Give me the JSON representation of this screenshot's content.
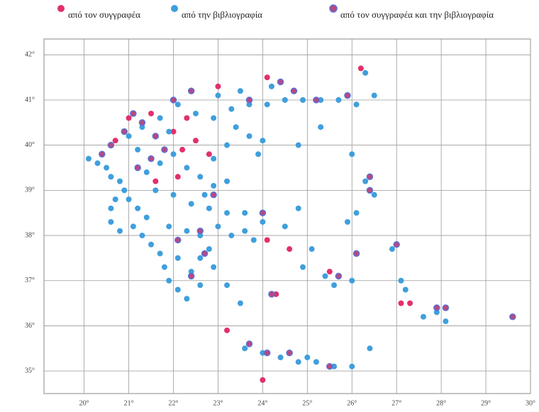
{
  "map": {
    "xlim": [
      19.1,
      30.0
    ],
    "ylim": [
      34.5,
      42.35
    ],
    "xticks": [
      {
        "value": 20,
        "label": "20°"
      },
      {
        "value": 21,
        "label": "21°"
      },
      {
        "value": 22,
        "label": "22°"
      },
      {
        "value": 23,
        "label": "23°"
      },
      {
        "value": 24,
        "label": "24°"
      },
      {
        "value": 25,
        "label": "25°"
      },
      {
        "value": 26,
        "label": "26°"
      },
      {
        "value": 27,
        "label": "27°"
      },
      {
        "value": 28,
        "label": "28°"
      },
      {
        "value": 29,
        "label": "29°"
      },
      {
        "value": 30,
        "label": "30°"
      }
    ],
    "yticks": [
      {
        "value": 42,
        "label": "42°"
      },
      {
        "value": 41,
        "label": "41°"
      },
      {
        "value": 40,
        "label": "40°"
      },
      {
        "value": 39,
        "label": "39°"
      },
      {
        "value": 38,
        "label": "38°"
      },
      {
        "value": 37,
        "label": "37°"
      },
      {
        "value": 36,
        "label": "36°"
      },
      {
        "value": 35,
        "label": "35°"
      }
    ],
    "grid": true,
    "series": [
      {
        "name": "από τον συγγραφέα",
        "color": "#e2306c",
        "points": [
          [
            20.7,
            40.1
          ],
          [
            21.0,
            40.6
          ],
          [
            21.5,
            40.7
          ],
          [
            22.0,
            40.3
          ],
          [
            22.2,
            39.9
          ],
          [
            22.5,
            40.1
          ],
          [
            22.8,
            39.8
          ],
          [
            23.0,
            41.3
          ],
          [
            24.1,
            41.5
          ],
          [
            22.3,
            40.6
          ],
          [
            22.1,
            39.3
          ],
          [
            21.6,
            39.2
          ],
          [
            24.1,
            37.9
          ],
          [
            24.6,
            37.7
          ],
          [
            25.5,
            37.2
          ],
          [
            23.2,
            35.9
          ],
          [
            24.0,
            34.8
          ],
          [
            27.1,
            36.5
          ],
          [
            27.3,
            36.5
          ],
          [
            24.3,
            36.7
          ],
          [
            26.2,
            41.7
          ]
        ]
      },
      {
        "name": "από την βιβλιογραφία",
        "color": "#3f9fdc",
        "points": [
          [
            20.1,
            39.7
          ],
          [
            20.3,
            39.6
          ],
          [
            20.5,
            39.5
          ],
          [
            20.6,
            39.3
          ],
          [
            20.8,
            39.2
          ],
          [
            20.9,
            39.0
          ],
          [
            21.0,
            38.8
          ],
          [
            21.2,
            38.6
          ],
          [
            21.4,
            38.4
          ],
          [
            20.7,
            38.8
          ],
          [
            20.6,
            38.3
          ],
          [
            20.8,
            38.1
          ],
          [
            21.3,
            38.0
          ],
          [
            21.5,
            37.8
          ],
          [
            21.7,
            37.6
          ],
          [
            21.8,
            37.3
          ],
          [
            21.9,
            37.0
          ],
          [
            22.1,
            36.8
          ],
          [
            22.3,
            36.6
          ],
          [
            22.4,
            37.2
          ],
          [
            22.6,
            37.5
          ],
          [
            22.8,
            37.7
          ],
          [
            22.9,
            37.3
          ],
          [
            22.6,
            36.9
          ],
          [
            22.1,
            37.5
          ],
          [
            21.9,
            38.2
          ],
          [
            22.3,
            38.1
          ],
          [
            22.6,
            38.0
          ],
          [
            23.0,
            38.2
          ],
          [
            23.3,
            38.0
          ],
          [
            23.6,
            38.1
          ],
          [
            23.8,
            37.9
          ],
          [
            24.0,
            38.3
          ],
          [
            23.6,
            38.5
          ],
          [
            23.2,
            38.5
          ],
          [
            22.8,
            38.6
          ],
          [
            22.4,
            38.7
          ],
          [
            22.0,
            38.9
          ],
          [
            21.6,
            39.0
          ],
          [
            21.4,
            39.4
          ],
          [
            21.7,
            39.6
          ],
          [
            22.0,
            39.8
          ],
          [
            22.3,
            39.5
          ],
          [
            22.6,
            39.3
          ],
          [
            22.9,
            39.1
          ],
          [
            23.2,
            39.2
          ],
          [
            22.7,
            38.9
          ],
          [
            21.2,
            39.9
          ],
          [
            21.0,
            40.2
          ],
          [
            21.3,
            40.4
          ],
          [
            21.7,
            40.6
          ],
          [
            22.1,
            40.9
          ],
          [
            22.5,
            40.7
          ],
          [
            22.9,
            40.6
          ],
          [
            23.3,
            40.8
          ],
          [
            23.7,
            40.9
          ],
          [
            24.1,
            40.9
          ],
          [
            24.5,
            41.0
          ],
          [
            24.9,
            41.0
          ],
          [
            25.3,
            41.0
          ],
          [
            25.7,
            41.0
          ],
          [
            26.1,
            40.9
          ],
          [
            23.0,
            41.1
          ],
          [
            23.5,
            41.2
          ],
          [
            24.2,
            41.3
          ],
          [
            23.4,
            40.4
          ],
          [
            23.7,
            40.2
          ],
          [
            24.0,
            40.1
          ],
          [
            23.9,
            39.8
          ],
          [
            23.2,
            40.0
          ],
          [
            24.8,
            40.0
          ],
          [
            25.3,
            40.4
          ],
          [
            26.0,
            39.8
          ],
          [
            26.3,
            39.2
          ],
          [
            26.5,
            38.9
          ],
          [
            25.9,
            38.3
          ],
          [
            26.1,
            38.5
          ],
          [
            24.8,
            38.6
          ],
          [
            24.5,
            38.2
          ],
          [
            25.1,
            37.7
          ],
          [
            24.9,
            37.3
          ],
          [
            25.4,
            37.1
          ],
          [
            25.6,
            36.9
          ],
          [
            26.0,
            37.0
          ],
          [
            27.1,
            37.0
          ],
          [
            26.9,
            37.7
          ],
          [
            27.2,
            36.8
          ],
          [
            27.6,
            36.2
          ],
          [
            27.9,
            36.3
          ],
          [
            28.1,
            36.1
          ],
          [
            26.4,
            35.5
          ],
          [
            23.6,
            35.5
          ],
          [
            24.0,
            35.4
          ],
          [
            24.4,
            35.3
          ],
          [
            24.8,
            35.2
          ],
          [
            25.2,
            35.2
          ],
          [
            25.6,
            35.1
          ],
          [
            26.0,
            35.1
          ],
          [
            25.0,
            35.3
          ],
          [
            23.2,
            36.9
          ],
          [
            23.5,
            36.5
          ],
          [
            24.2,
            36.7
          ],
          [
            21.9,
            40.3
          ],
          [
            22.9,
            39.7
          ],
          [
            26.3,
            41.6
          ],
          [
            26.5,
            41.1
          ],
          [
            20.6,
            38.6
          ],
          [
            21.1,
            38.2
          ]
        ]
      },
      {
        "name": "από τον συγγραφέα και την βιβλιογραφία",
        "color": "#b8487f",
        "stroke": "#5b72d6",
        "points": [
          [
            20.4,
            39.8
          ],
          [
            20.6,
            40.0
          ],
          [
            20.9,
            40.3
          ],
          [
            21.1,
            40.7
          ],
          [
            21.3,
            40.5
          ],
          [
            21.6,
            40.2
          ],
          [
            21.8,
            39.9
          ],
          [
            21.5,
            39.7
          ],
          [
            21.2,
            39.5
          ],
          [
            22.4,
            41.2
          ],
          [
            22.0,
            41.0
          ],
          [
            23.7,
            41.0
          ],
          [
            24.4,
            41.4
          ],
          [
            24.7,
            41.2
          ],
          [
            25.2,
            41.0
          ],
          [
            25.9,
            41.1
          ],
          [
            22.9,
            38.9
          ],
          [
            22.6,
            38.1
          ],
          [
            22.1,
            37.9
          ],
          [
            22.4,
            37.1
          ],
          [
            22.7,
            37.6
          ],
          [
            24.0,
            38.5
          ],
          [
            26.4,
            39.3
          ],
          [
            26.4,
            39.0
          ],
          [
            27.0,
            37.8
          ],
          [
            27.9,
            36.4
          ],
          [
            28.1,
            36.4
          ],
          [
            29.6,
            36.2
          ],
          [
            23.7,
            35.6
          ],
          [
            24.1,
            35.4
          ],
          [
            24.6,
            35.4
          ],
          [
            25.5,
            35.1
          ],
          [
            24.2,
            36.7
          ],
          [
            25.7,
            37.1
          ],
          [
            26.1,
            37.6
          ]
        ]
      }
    ]
  }
}
